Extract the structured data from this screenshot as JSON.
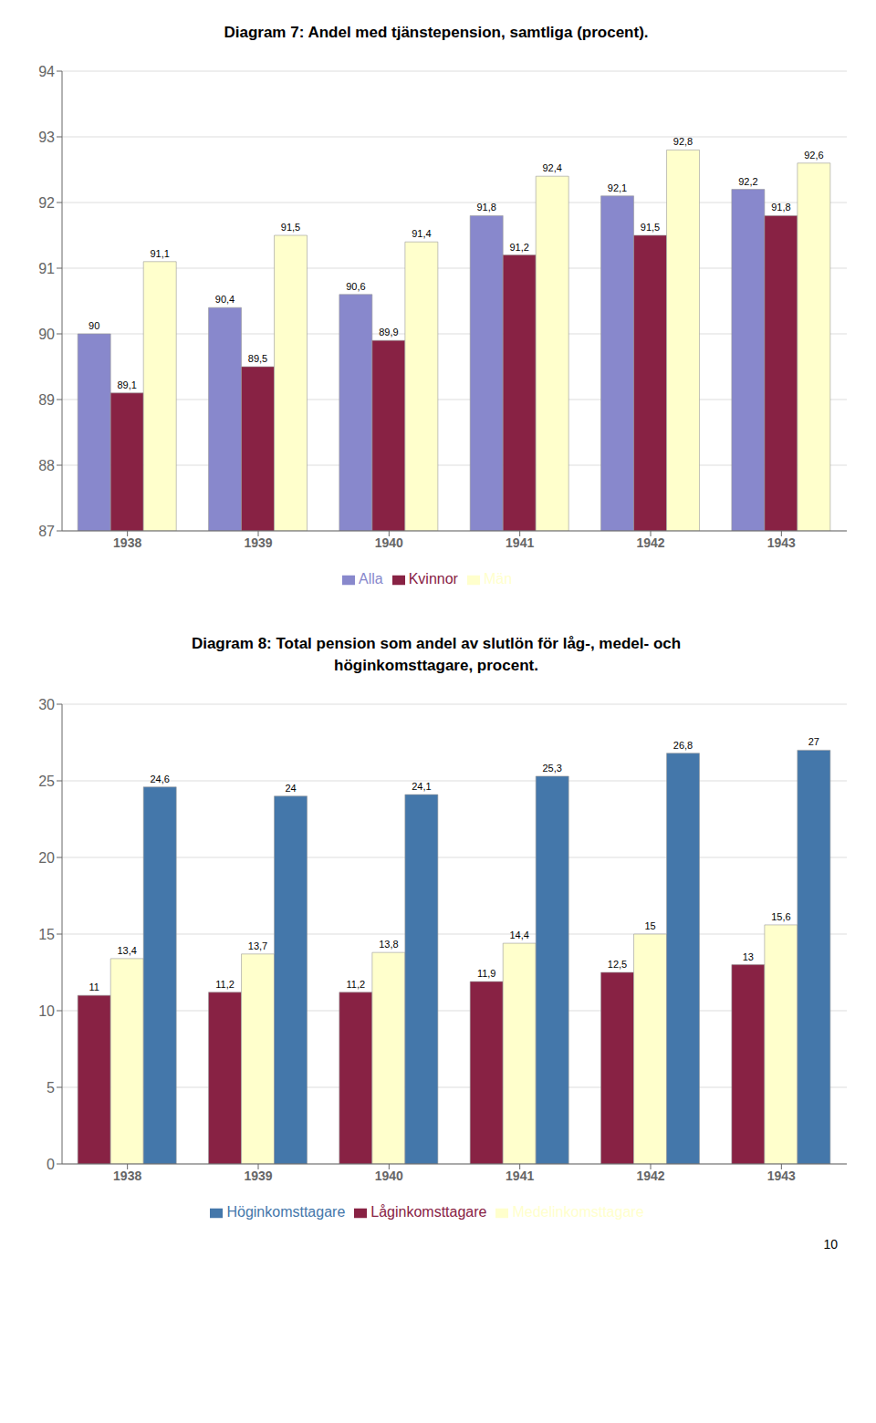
{
  "chart_data": [
    {
      "type": "bar",
      "title": "Diagram 7: Andel med tjänstepension, samtliga (procent).",
      "categories": [
        "1938",
        "1939",
        "1940",
        "1941",
        "1942",
        "1943"
      ],
      "series": [
        {
          "name": "Alla",
          "color": "#8888cc",
          "values": [
            90.0,
            90.4,
            90.6,
            91.8,
            92.1,
            92.2
          ],
          "value_labels": [
            "90",
            "90,4",
            "90,6",
            "91,8",
            "92,1",
            "92,2"
          ]
        },
        {
          "name": "Kvinnor",
          "color": "#882244",
          "values": [
            89.1,
            89.5,
            89.9,
            91.2,
            91.5,
            91.8
          ],
          "value_labels": [
            "89,1",
            "89,5",
            "89,9",
            "91,2",
            "91,5",
            "91,8"
          ]
        },
        {
          "name": "Män",
          "color": "#ffffcc",
          "values": [
            91.1,
            91.5,
            91.4,
            92.4,
            92.8,
            92.6
          ],
          "value_labels": [
            "91,1",
            "91,5",
            "91,4",
            "92,4",
            "92,8",
            "92,6"
          ]
        }
      ],
      "ylim": [
        87,
        94
      ],
      "yticks": [
        87,
        88,
        89,
        90,
        91,
        92,
        93,
        94
      ],
      "grid": true,
      "legend": "bottom",
      "data_labels": true
    },
    {
      "type": "bar",
      "title": "Diagram 8: Total pension som andel av slutlön för låg-, medel- och\nhöginkomsttagare, procent.",
      "categories": [
        "1938",
        "1939",
        "1940",
        "1941",
        "1942",
        "1943"
      ],
      "series": [
        {
          "name": "Låginkomsttagare",
          "color": "#882244",
          "values": [
            11.0,
            11.2,
            11.2,
            11.9,
            12.5,
            13.0
          ],
          "value_labels": [
            "11",
            "11,2",
            "11,2",
            "11,9",
            "12,5",
            "13"
          ]
        },
        {
          "name": "Medelinkomsttagare",
          "color": "#ffffcc",
          "values": [
            13.4,
            13.7,
            13.8,
            14.4,
            15.0,
            15.6
          ],
          "value_labels": [
            "13,4",
            "13,7",
            "13,8",
            "14,4",
            "15",
            "15,6"
          ]
        },
        {
          "name": "Höginkomsttagare",
          "color": "#4477aa",
          "values": [
            24.6,
            24.0,
            24.1,
            25.3,
            26.8,
            27.0
          ],
          "value_labels": [
            "24,6",
            "24",
            "24,1",
            "25,3",
            "26,8",
            "27"
          ]
        }
      ],
      "ylim": [
        0,
        30
      ],
      "yticks": [
        0,
        5,
        10,
        15,
        20,
        25,
        30
      ],
      "grid": true,
      "legend": "bottom",
      "data_labels": true,
      "annotations": [
        "10"
      ]
    }
  ]
}
